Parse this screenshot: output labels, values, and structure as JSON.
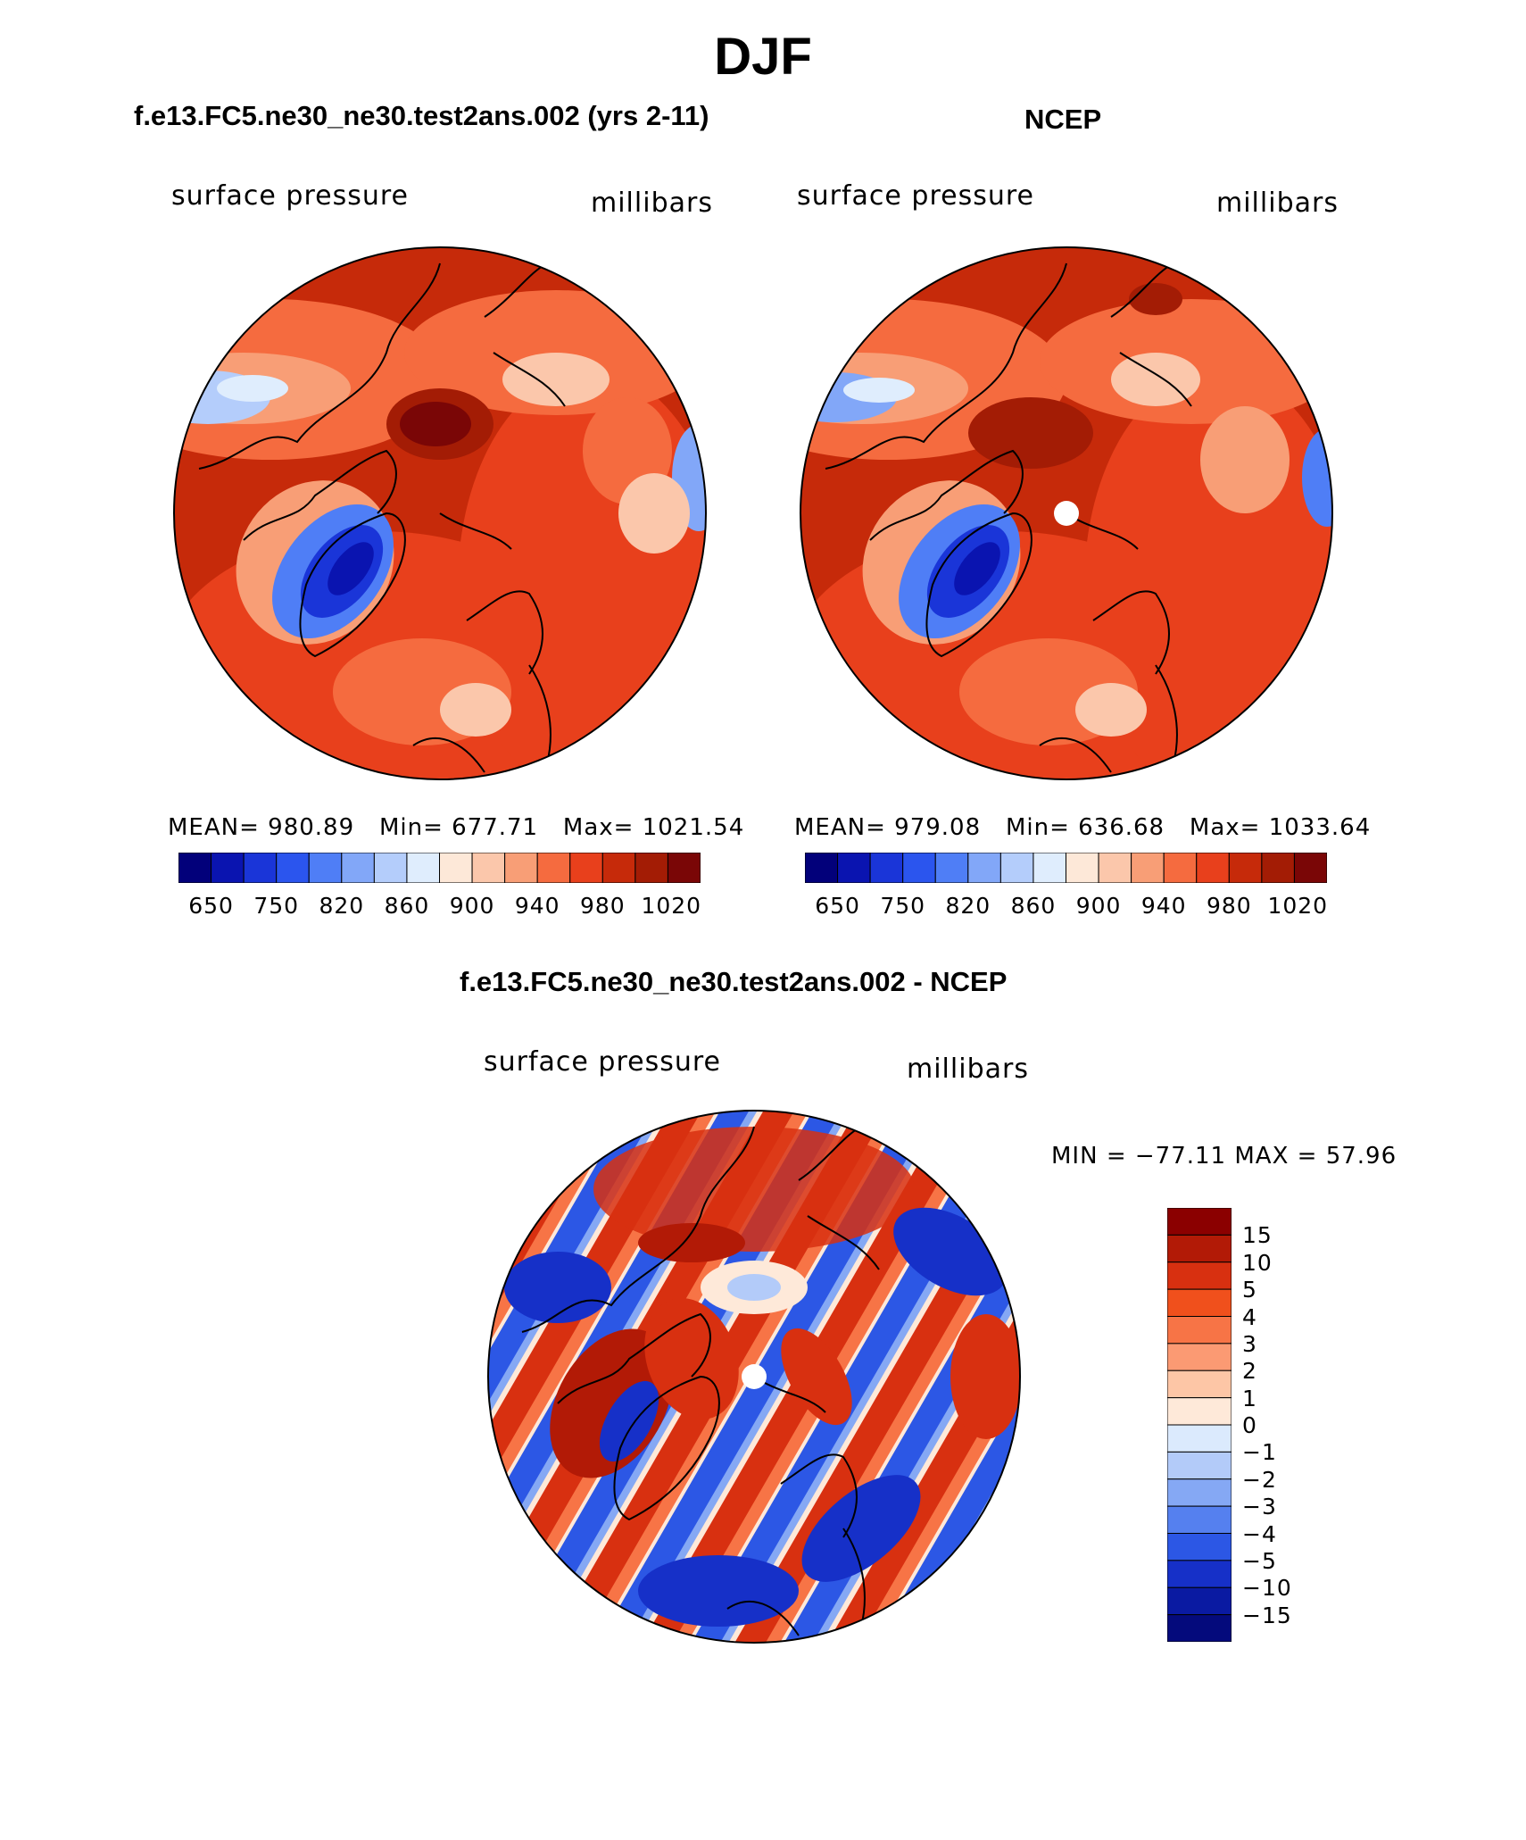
{
  "figure_title": "DJF",
  "panels": [
    {
      "title": "f.e13.FC5.ne30_ne30.test2ans.002 (yrs 2-11)",
      "variable": "surface pressure",
      "units": "millibars",
      "mean_label": "MEAN=",
      "mean": "980.89",
      "min_label": "Min=",
      "min": "677.71",
      "max_label": "Max=",
      "max": "1021.54"
    },
    {
      "title": "NCEP",
      "variable": "surface pressure",
      "units": "millibars",
      "mean_label": "MEAN=",
      "mean": "979.08",
      "min_label": "Min=",
      "min": "636.68",
      "max_label": "Max=",
      "max": "1033.64"
    }
  ],
  "colorbar_levels": [
    "650",
    "750",
    "820",
    "860",
    "900",
    "940",
    "980",
    "1020"
  ],
  "colorbar_colors": [
    "#02007a",
    "#0a14b0",
    "#1a35d8",
    "#2b55ee",
    "#4f7ef6",
    "#82a7f8",
    "#b4cdfb",
    "#dfedfd",
    "#fde8d8",
    "#fbc7ab",
    "#f89e76",
    "#f56b3f",
    "#e8401c",
    "#c62a0a",
    "#a31c05",
    "#7a0606"
  ],
  "difference": {
    "title": "f.e13.FC5.ne30_ne30.test2ans.002 - NCEP",
    "variable": "surface pressure",
    "units": "millibars",
    "stats": "MIN = −77.11 MAX =   57.96",
    "levels": [
      "15",
      "10",
      "5",
      "4",
      "3",
      "2",
      "1",
      "0",
      "−1",
      "−2",
      "−3",
      "−4",
      "−5",
      "−10",
      "−15"
    ],
    "colors": [
      "#8b0000",
      "#b21a06",
      "#d83010",
      "#f0501c",
      "#f77446",
      "#fb9a73",
      "#fdc6a6",
      "#fee9d9",
      "#dbeafd",
      "#b3cbf9",
      "#85a8f4",
      "#5580ef",
      "#2c57e5",
      "#1630c8",
      "#0a1aa2",
      "#040a7c"
    ]
  },
  "chart_data": {
    "type": "heatmap",
    "title": "DJF",
    "maps": [
      {
        "title": "f.e13.FC5.ne30_ne30.test2ans.002 (yrs 2-11)",
        "mean": 980.89,
        "min": 677.71,
        "max": 1021.54,
        "projection": "polar stereographic (north)"
      },
      {
        "title": "NCEP",
        "mean": 979.08,
        "min": 636.68,
        "max": 1033.64,
        "projection": "polar stereographic (north)"
      },
      {
        "title": "f.e13.FC5.ne30_ne30.test2ans.002 - NCEP",
        "min": -77.11,
        "max": 57.96,
        "projection": "polar stereographic (north)"
      }
    ],
    "colorbar_levels": [
      650,
      750,
      820,
      860,
      900,
      940,
      980,
      1020
    ],
    "difference_levels": [
      15,
      10,
      5,
      4,
      3,
      2,
      1,
      0,
      -1,
      -2,
      -3,
      -4,
      -5,
      -10,
      -15
    ]
  }
}
